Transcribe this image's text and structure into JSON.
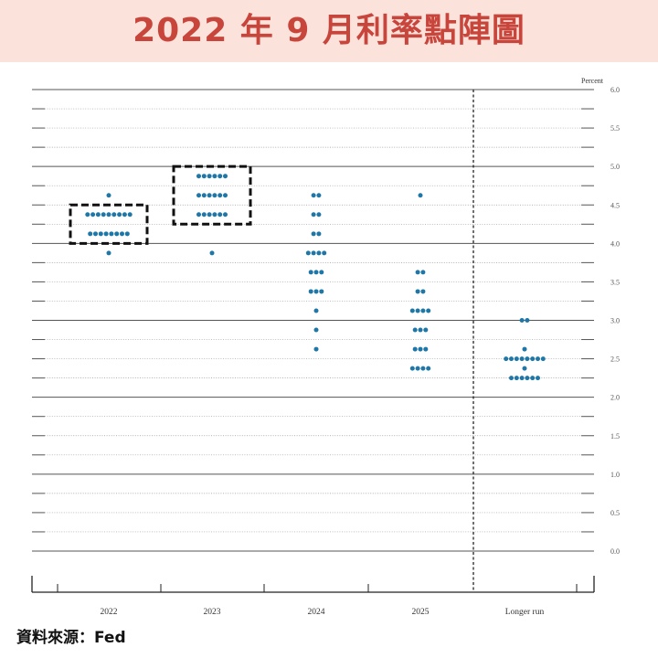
{
  "header": {
    "title": "2022 年 9 月利率點陣圖"
  },
  "source": {
    "label": "資料來源：Fed"
  },
  "chart_data": {
    "type": "scatter",
    "title": "",
    "xlabel": "",
    "ylabel": "Percent",
    "ylim": [
      0,
      6
    ],
    "y_ticks": [
      "0.0",
      "0.5",
      "1.0",
      "1.5",
      "2.0",
      "2.5",
      "3.0",
      "3.5",
      "4.0",
      "4.5",
      "5.0",
      "5.5",
      "6.0"
    ],
    "categories": [
      "2022",
      "2023",
      "2024",
      "2025",
      "Longer run"
    ],
    "grid": true,
    "dot_color": "#1f77a8",
    "highlight_boxes": [
      {
        "category": "2022",
        "y_range": [
          4.0,
          4.5
        ]
      },
      {
        "category": "2023",
        "y_range": [
          4.25,
          5.0
        ]
      }
    ],
    "series": [
      {
        "category": "2022",
        "points": [
          {
            "y": 4.625,
            "count": 1
          },
          {
            "y": 4.375,
            "count": 9
          },
          {
            "y": 4.125,
            "count": 8
          },
          {
            "y": 3.875,
            "count": 1
          }
        ]
      },
      {
        "category": "2023",
        "points": [
          {
            "y": 4.875,
            "count": 6
          },
          {
            "y": 4.625,
            "count": 6
          },
          {
            "y": 4.375,
            "count": 6
          },
          {
            "y": 3.875,
            "count": 1
          }
        ]
      },
      {
        "category": "2024",
        "points": [
          {
            "y": 4.625,
            "count": 2
          },
          {
            "y": 4.375,
            "count": 2
          },
          {
            "y": 4.125,
            "count": 2
          },
          {
            "y": 3.875,
            "count": 4
          },
          {
            "y": 3.625,
            "count": 3
          },
          {
            "y": 3.375,
            "count": 3
          },
          {
            "y": 3.125,
            "count": 1
          },
          {
            "y": 2.875,
            "count": 1
          },
          {
            "y": 2.625,
            "count": 1
          }
        ]
      },
      {
        "category": "2025",
        "points": [
          {
            "y": 4.625,
            "count": 1
          },
          {
            "y": 3.625,
            "count": 2
          },
          {
            "y": 3.375,
            "count": 2
          },
          {
            "y": 3.125,
            "count": 4
          },
          {
            "y": 2.875,
            "count": 3
          },
          {
            "y": 2.625,
            "count": 3
          },
          {
            "y": 2.375,
            "count": 4
          }
        ]
      },
      {
        "category": "Longer run",
        "points": [
          {
            "y": 3.0,
            "count": 2
          },
          {
            "y": 2.625,
            "count": 1
          },
          {
            "y": 2.5,
            "count": 8
          },
          {
            "y": 2.375,
            "count": 1
          },
          {
            "y": 2.25,
            "count": 6
          }
        ]
      }
    ]
  }
}
